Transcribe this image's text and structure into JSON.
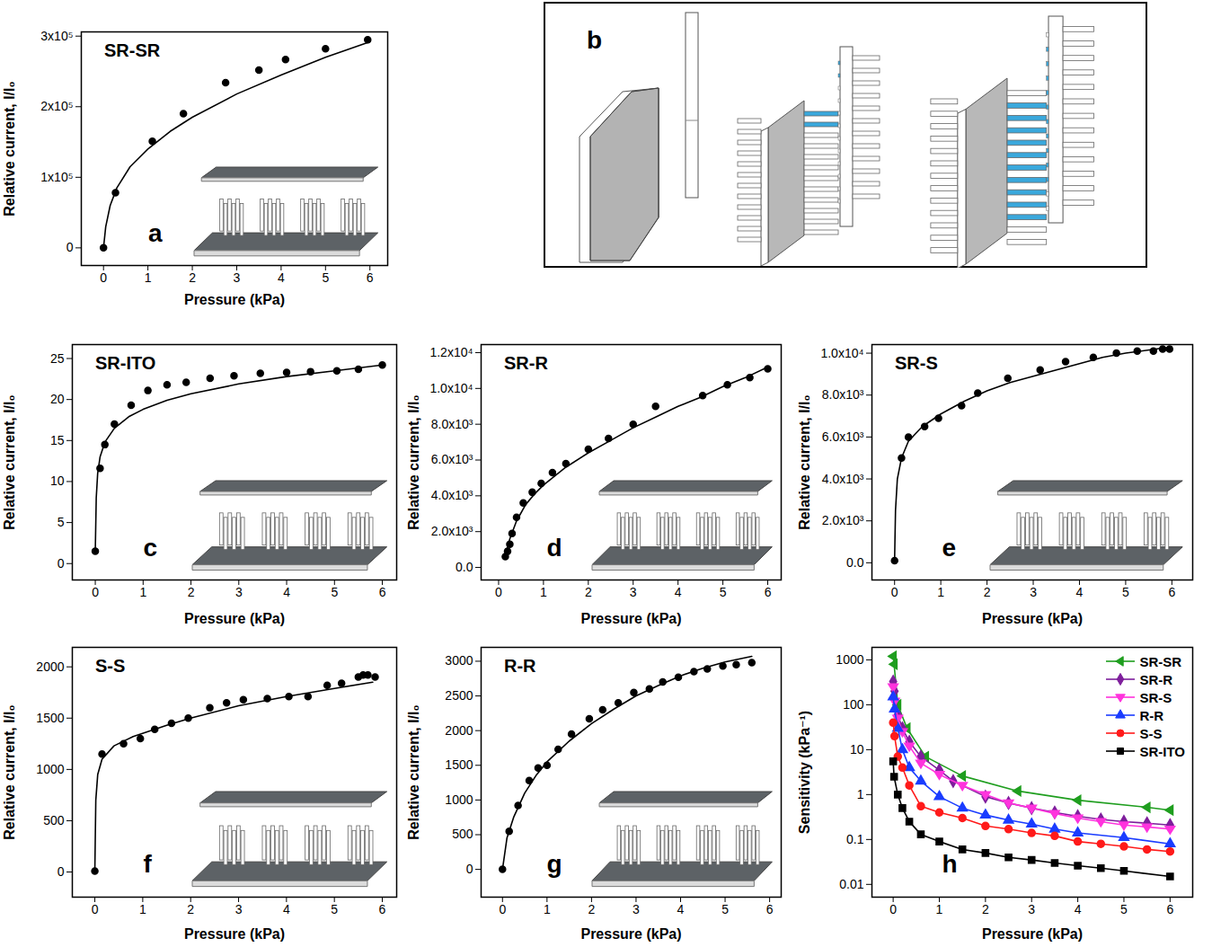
{
  "chart_data": [
    {
      "type": "scatter",
      "panel_label": "a",
      "title": "SR-SR",
      "x_label": "Pressure (kPa)",
      "y_label": "Relative current, I/I₀",
      "xlim": [
        -0.5,
        6.4
      ],
      "xticks": [
        0,
        1,
        2,
        3,
        4,
        5,
        6
      ],
      "ylim": [
        -25000,
        306000
      ],
      "yticks": [
        0,
        {
          "value": 100000,
          "label": "1x10⁵"
        },
        {
          "value": 200000,
          "label": "2x10⁵"
        },
        {
          "value": 300000,
          "label": "3x10⁵"
        }
      ],
      "grid": false,
      "series": [
        {
          "type": "scatter",
          "marker": "circle",
          "color": "#000000",
          "x": [
            0,
            0.27,
            1.1,
            1.8,
            2.75,
            3.5,
            4.1,
            5,
            5.95
          ],
          "values": [
            0,
            78000,
            151000,
            190000,
            234000,
            252000,
            267000,
            282000,
            295000
          ]
        },
        {
          "type": "line",
          "line_style": "solid",
          "color": "#000000",
          "x": [
            0,
            0.05,
            0.15,
            0.3,
            0.6,
            1,
            1.5,
            2,
            3,
            4,
            5,
            6
          ],
          "values": [
            0,
            30000,
            60000,
            85000,
            115000,
            140000,
            165000,
            185000,
            218000,
            245000,
            270000,
            292000
          ]
        }
      ]
    },
    {
      "type": "scatter",
      "panel_label": "c",
      "title": "SR-ITO",
      "x_label": "Pressure (kPa)",
      "y_label": "Relative current, I/I₀",
      "xlim": [
        -0.48,
        6.3
      ],
      "xticks": [
        0,
        1,
        2,
        3,
        4,
        5,
        6
      ],
      "ylim": [
        -2,
        26.7
      ],
      "yticks": [
        0,
        5,
        10,
        15,
        20,
        25
      ],
      "grid": false,
      "series": [
        {
          "type": "scatter",
          "marker": "circle",
          "color": "#000000",
          "x": [
            0,
            0.1,
            0.2,
            0.4,
            0.75,
            1.1,
            1.5,
            1.9,
            2.4,
            2.9,
            3.45,
            4,
            4.5,
            5.05,
            5.5,
            6
          ],
          "values": [
            1.5,
            11.6,
            14.5,
            17,
            19.3,
            21.1,
            21.8,
            22.1,
            22.6,
            22.9,
            23.2,
            23.3,
            23.4,
            23.5,
            23.7,
            24.2
          ]
        },
        {
          "type": "line",
          "line_style": "solid",
          "color": "#000000",
          "x": [
            0,
            0.02,
            0.05,
            0.1,
            0.2,
            0.4,
            0.7,
            1,
            1.5,
            2,
            3,
            4,
            5,
            6
          ],
          "values": [
            1.5,
            8,
            11,
            13,
            14.8,
            16.5,
            17.9,
            18.8,
            19.9,
            20.7,
            21.9,
            22.8,
            23.5,
            24.2
          ]
        }
      ]
    },
    {
      "type": "scatter",
      "panel_label": "d",
      "title": "SR-R",
      "x_label": "Pressure (kPa)",
      "y_label": "Relative current, I/I₀",
      "xlim": [
        -0.39,
        6.3
      ],
      "xticks": [
        0,
        1,
        2,
        3,
        4,
        5,
        6
      ],
      "ylim": [
        -700,
        12450
      ],
      "yticks": [
        {
          "value": 0,
          "label": "0.0"
        },
        {
          "value": 2000,
          "label": "2.0x10³"
        },
        {
          "value": 4000,
          "label": "4.0x10³"
        },
        {
          "value": 6000,
          "label": "6.0x10³"
        },
        {
          "value": 8000,
          "label": "8.0x10³"
        },
        {
          "value": 10000,
          "label": "1.0x10⁴"
        },
        {
          "value": 12000,
          "label": "1.2x10⁴"
        }
      ],
      "grid": false,
      "series": [
        {
          "type": "scatter",
          "marker": "circle",
          "color": "#000000",
          "x": [
            0.15,
            0.2,
            0.25,
            0.3,
            0.4,
            0.55,
            0.75,
            0.95,
            1.2,
            1.5,
            2,
            2.45,
            3,
            3.5,
            4.55,
            5.1,
            5.6,
            6
          ],
          "values": [
            600,
            900,
            1300,
            1900,
            2800,
            3600,
            4200,
            4700,
            5300,
            5800,
            6600,
            7200,
            8000,
            9000,
            9600,
            10200,
            10600,
            11100
          ]
        },
        {
          "type": "line",
          "line_style": "solid",
          "color": "#000000",
          "x": [
            0.15,
            0.25,
            0.4,
            0.6,
            0.8,
            1,
            1.5,
            2,
            2.5,
            3,
            3.5,
            4,
            4.5,
            5,
            5.5,
            6
          ],
          "values": [
            600,
            1600,
            2600,
            3500,
            4100,
            4600,
            5600,
            6400,
            7100,
            7800,
            8400,
            9000,
            9500,
            10100,
            10600,
            11200
          ]
        }
      ]
    },
    {
      "type": "scatter",
      "panel_label": "e",
      "title": "SR-S",
      "x_label": "Pressure (kPa)",
      "y_label": "Relative current, I/I₀",
      "xlim": [
        -0.49,
        6.45
      ],
      "xticks": [
        0,
        1,
        2,
        3,
        4,
        5,
        6
      ],
      "ylim": [
        -820,
        10410
      ],
      "yticks": [
        {
          "value": 0,
          "label": "0.0"
        },
        {
          "value": 2000,
          "label": "2.0x10³"
        },
        {
          "value": 4000,
          "label": "4.0x10³"
        },
        {
          "value": 6000,
          "label": "6.0x10³"
        },
        {
          "value": 8000,
          "label": "8.0x10³"
        },
        {
          "value": 10000,
          "label": "1.0x10⁴"
        }
      ],
      "grid": false,
      "series": [
        {
          "type": "scatter",
          "marker": "circle",
          "color": "#000000",
          "x": [
            0,
            0.15,
            0.3,
            0.65,
            0.95,
            1.45,
            1.8,
            2.45,
            3.15,
            3.7,
            4.3,
            4.8,
            5.25,
            5.6,
            5.8,
            5.95
          ],
          "values": [
            100,
            5000,
            6000,
            6500,
            6900,
            7500,
            8100,
            8800,
            9200,
            9600,
            9800,
            10000,
            10100,
            10100,
            10200,
            10200
          ]
        },
        {
          "type": "line",
          "line_style": "solid",
          "color": "#000000",
          "x": [
            0,
            0.02,
            0.06,
            0.15,
            0.3,
            0.6,
            1,
            1.5,
            2,
            2.5,
            3,
            3.5,
            4,
            4.5,
            5,
            6
          ],
          "values": [
            100,
            2500,
            4000,
            5000,
            5800,
            6500,
            7100,
            7700,
            8200,
            8600,
            8900,
            9200,
            9500,
            9800,
            10000,
            10300
          ]
        }
      ]
    },
    {
      "type": "scatter",
      "panel_label": "f",
      "title": "S-S",
      "x_label": "Pressure (kPa)",
      "y_label": "Relative current, I/I₀",
      "xlim": [
        -0.47,
        6.3
      ],
      "xticks": [
        0,
        1,
        2,
        3,
        4,
        5,
        6
      ],
      "ylim": [
        -245,
        2190
      ],
      "yticks": [
        0,
        500,
        1000,
        1500,
        2000
      ],
      "grid": false,
      "series": [
        {
          "type": "scatter",
          "marker": "circle",
          "color": "#000000",
          "x": [
            0,
            0.15,
            0.6,
            0.95,
            1.25,
            1.6,
            1.95,
            2.4,
            2.75,
            3.1,
            3.6,
            4.05,
            4.45,
            4.85,
            5.15,
            5.5,
            5.6,
            5.7,
            5.85
          ],
          "values": [
            10,
            1150,
            1250,
            1300,
            1390,
            1450,
            1500,
            1600,
            1650,
            1680,
            1690,
            1710,
            1710,
            1820,
            1840,
            1900,
            1920,
            1920,
            1900
          ]
        },
        {
          "type": "line",
          "line_style": "solid",
          "color": "#000000",
          "x": [
            0,
            0.02,
            0.06,
            0.15,
            0.4,
            0.8,
            1.5,
            2,
            3,
            4,
            5,
            5.8
          ],
          "values": [
            10,
            700,
            950,
            1100,
            1230,
            1320,
            1430,
            1500,
            1620,
            1710,
            1790,
            1850
          ]
        }
      ]
    },
    {
      "type": "scatter",
      "panel_label": "g",
      "title": "R-R",
      "x_label": "Pressure (kPa)",
      "y_label": "Relative current, I/I₀",
      "xlim": [
        -0.48,
        6.26
      ],
      "xticks": [
        0,
        1,
        2,
        3,
        4,
        5,
        6
      ],
      "ylim": [
        -400,
        3200
      ],
      "yticks": [
        0,
        500,
        1000,
        1500,
        2000,
        2500,
        3000
      ],
      "grid": false,
      "series": [
        {
          "type": "scatter",
          "marker": "circle",
          "color": "#000000",
          "x": [
            0,
            0.15,
            0.35,
            0.6,
            0.8,
            1,
            1.25,
            1.55,
            1.95,
            2.25,
            2.6,
            2.95,
            3.3,
            3.6,
            3.95,
            4.3,
            4.6,
            4.95,
            5.25,
            5.6
          ],
          "values": [
            0,
            550,
            920,
            1280,
            1460,
            1500,
            1730,
            1950,
            2170,
            2300,
            2400,
            2550,
            2600,
            2700,
            2770,
            2850,
            2890,
            2930,
            2950,
            2980
          ]
        },
        {
          "type": "line",
          "line_style": "solid",
          "color": "#000000",
          "x": [
            0,
            0.1,
            0.25,
            0.5,
            0.75,
            1,
            1.5,
            2,
            2.5,
            3,
            3.5,
            4,
            4.5,
            5,
            5.6
          ],
          "values": [
            0,
            450,
            750,
            1100,
            1350,
            1550,
            1850,
            2100,
            2310,
            2500,
            2650,
            2790,
            2900,
            2990,
            3070
          ]
        }
      ]
    },
    {
      "type": "line",
      "panel_label": "h",
      "x_label": "Pressure (kPa)",
      "y_label": "Sensitivity (kPa⁻¹)",
      "log": "y",
      "legend": "upper right",
      "grid": false,
      "xlim": [
        -0.46,
        6.49
      ],
      "xticks": [
        0,
        1,
        2,
        3,
        4,
        5,
        6
      ],
      "ylim": [
        0.0052,
        1900
      ],
      "yticks": [
        0.01,
        0.1,
        1,
        10,
        100,
        1000
      ],
      "series": [
        {
          "name": "SR-SR",
          "color": "#1f9e1f",
          "marker": "triangle-left",
          "line_style": "solid",
          "x": [
            0,
            0.02,
            0.1,
            0.3,
            0.7,
            1.5,
            2.7,
            4,
            5.5,
            6
          ],
          "values": [
            1200,
            800,
            100,
            30,
            7,
            2.6,
            1.2,
            0.75,
            0.52,
            0.45
          ]
        },
        {
          "name": "SR-R",
          "color": "#7e1e9c",
          "marker": "diamond",
          "line_style": "solid",
          "x": [
            0,
            0.03,
            0.1,
            0.2,
            0.35,
            0.6,
            1,
            1.3,
            2,
            2.5,
            3,
            3.5,
            4,
            4.5,
            5,
            5.5,
            6
          ],
          "values": [
            330,
            200,
            60,
            30,
            15,
            7,
            3.5,
            2,
            0.9,
            0.65,
            0.5,
            0.4,
            0.33,
            0.28,
            0.25,
            0.23,
            0.21
          ]
        },
        {
          "name": "SR-S",
          "color": "#ff33dd",
          "marker": "triangle-down",
          "line_style": "solid",
          "x": [
            0,
            0.03,
            0.1,
            0.2,
            0.35,
            0.6,
            1,
            1.5,
            2,
            2.5,
            3,
            3.5,
            4,
            4.5,
            5,
            5.5,
            6
          ],
          "values": [
            250,
            120,
            50,
            25,
            12,
            5,
            2.8,
            1.6,
            1,
            0.65,
            0.5,
            0.38,
            0.3,
            0.25,
            0.21,
            0.19,
            0.17
          ]
        },
        {
          "name": "R-R",
          "color": "#1a3cff",
          "marker": "triangle",
          "line_style": "solid",
          "x": [
            0,
            0.03,
            0.1,
            0.2,
            0.35,
            0.6,
            1,
            1.5,
            2,
            2.5,
            3,
            3.5,
            4,
            5,
            6
          ],
          "values": [
            150,
            80,
            30,
            10,
            4,
            2,
            0.9,
            0.5,
            0.35,
            0.27,
            0.22,
            0.17,
            0.14,
            0.11,
            0.08
          ]
        },
        {
          "name": "S-S",
          "color": "#ff1a1a",
          "marker": "circle",
          "line_style": "solid",
          "x": [
            0,
            0.03,
            0.1,
            0.2,
            0.35,
            0.6,
            1,
            1.5,
            2,
            2.5,
            3,
            3.5,
            4,
            4.5,
            5,
            5.5,
            6
          ],
          "values": [
            40,
            20,
            7,
            4,
            1.6,
            0.55,
            0.4,
            0.3,
            0.2,
            0.17,
            0.14,
            0.12,
            0.09,
            0.08,
            0.07,
            0.06,
            0.054
          ]
        },
        {
          "name": "SR-ITO",
          "color": "#000000",
          "marker": "square",
          "line_style": "solid",
          "x": [
            0,
            0.02,
            0.1,
            0.2,
            0.35,
            0.6,
            1,
            1.5,
            2,
            2.5,
            3,
            3.5,
            4,
            4.5,
            5,
            6
          ],
          "values": [
            5.5,
            2.5,
            1,
            0.5,
            0.25,
            0.13,
            0.09,
            0.06,
            0.05,
            0.04,
            0.035,
            0.03,
            0.026,
            0.023,
            0.02,
            0.015
          ]
        }
      ]
    }
  ],
  "diagram": {
    "panel_label": "b"
  }
}
